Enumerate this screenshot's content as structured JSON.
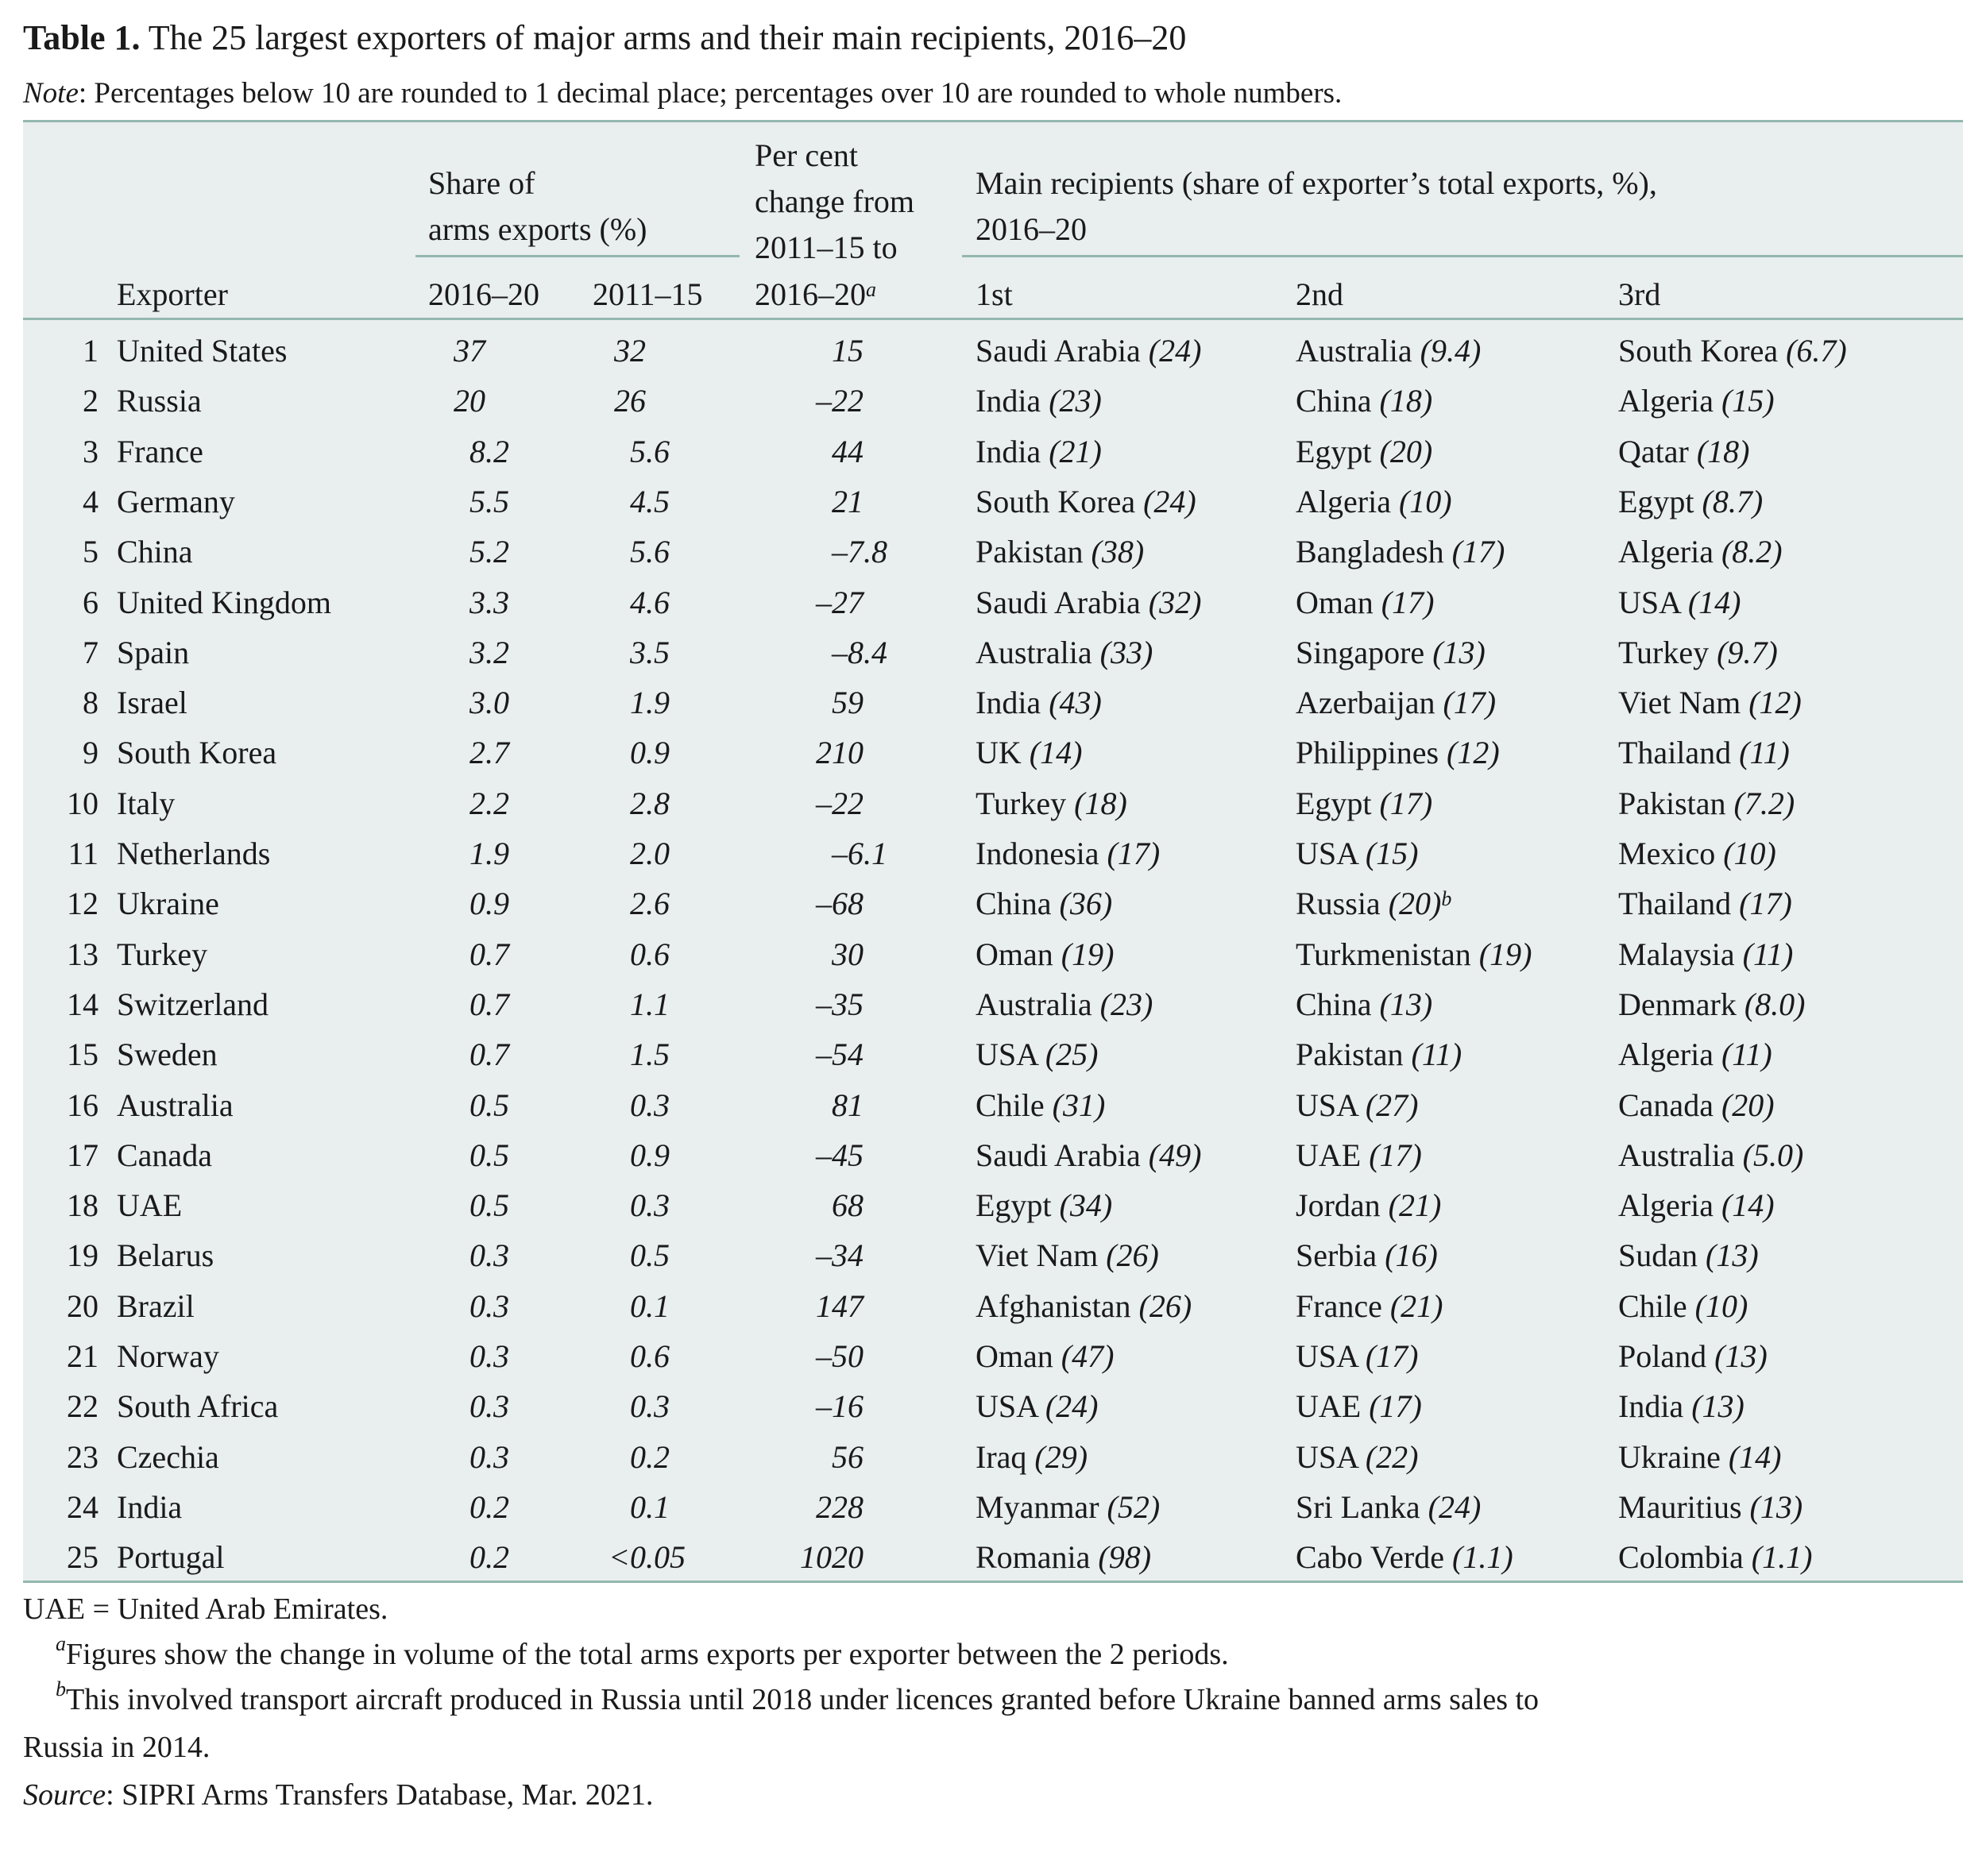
{
  "title": {
    "label": "Table 1.",
    "text": "The 25 largest exporters of major arms and their main recipients, 2016–20"
  },
  "note": {
    "label": "Note",
    "text": ": Percentages below 10 are rounded to 1 decimal place; percentages over 10 are rounded to whole numbers."
  },
  "header": {
    "share_group": [
      "Share of",
      "arms exports (%)"
    ],
    "change_group": [
      "Per cent",
      "change from",
      "2011–15 to",
      "2016–20"
    ],
    "change_footnote": "a",
    "recipients_group": [
      "Main recipients (share of exporter’s total exports, %),",
      "2016–20"
    ],
    "exporter": "Exporter",
    "share_2016_20": "2016–20",
    "share_2011_15": "2011–15",
    "first": "1st",
    "second": "2nd",
    "third": "3rd"
  },
  "colors": {
    "table_bg": "#e9eeee",
    "rule": "#93b8b0"
  },
  "rows": [
    {
      "rank": "1",
      "exporter": "United States",
      "s1620": "37",
      "s1115": "32",
      "change": "15",
      "r1": [
        "Saudi Arabia",
        "24"
      ],
      "r2": [
        "Australia",
        "9.4"
      ],
      "r3": [
        "South Korea",
        "6.7"
      ]
    },
    {
      "rank": "2",
      "exporter": "Russia",
      "s1620": "20",
      "s1115": "26",
      "change": "–22",
      "r1": [
        "India",
        "23"
      ],
      "r2": [
        "China",
        "18"
      ],
      "r3": [
        "Algeria",
        "15"
      ]
    },
    {
      "rank": "3",
      "exporter": "France",
      "s1620": "8.2",
      "s1115": "5.6",
      "change": "44",
      "r1": [
        "India",
        "21"
      ],
      "r2": [
        "Egypt",
        "20"
      ],
      "r3": [
        "Qatar",
        "18"
      ]
    },
    {
      "rank": "4",
      "exporter": "Germany",
      "s1620": "5.5",
      "s1115": "4.5",
      "change": "21",
      "r1": [
        "South Korea",
        "24"
      ],
      "r2": [
        "Algeria",
        "10"
      ],
      "r3": [
        "Egypt",
        "8.7"
      ]
    },
    {
      "rank": "5",
      "exporter": "China",
      "s1620": "5.2",
      "s1115": "5.6",
      "change": "–7.8",
      "r1": [
        "Pakistan",
        "38"
      ],
      "r2": [
        "Bangladesh",
        "17"
      ],
      "r3": [
        "Algeria",
        "8.2"
      ]
    },
    {
      "rank": "6",
      "exporter": "United Kingdom",
      "s1620": "3.3",
      "s1115": "4.6",
      "change": "–27",
      "r1": [
        "Saudi Arabia",
        "32"
      ],
      "r2": [
        "Oman",
        "17"
      ],
      "r3": [
        "USA",
        "14"
      ]
    },
    {
      "rank": "7",
      "exporter": "Spain",
      "s1620": "3.2",
      "s1115": "3.5",
      "change": "–8.4",
      "r1": [
        "Australia",
        "33"
      ],
      "r2": [
        "Singapore",
        "13"
      ],
      "r3": [
        "Turkey",
        "9.7"
      ]
    },
    {
      "rank": "8",
      "exporter": "Israel",
      "s1620": "3.0",
      "s1115": "1.9",
      "change": "59",
      "r1": [
        "India",
        "43"
      ],
      "r2": [
        "Azerbaijan",
        "17"
      ],
      "r3": [
        "Viet Nam",
        "12"
      ]
    },
    {
      "rank": "9",
      "exporter": "South Korea",
      "s1620": "2.7",
      "s1115": "0.9",
      "change": "210",
      "r1": [
        "UK",
        "14"
      ],
      "r2": [
        "Philippines",
        "12"
      ],
      "r3": [
        "Thailand",
        "11"
      ]
    },
    {
      "rank": "10",
      "exporter": "Italy",
      "s1620": "2.2",
      "s1115": "2.8",
      "change": "–22",
      "r1": [
        "Turkey",
        "18"
      ],
      "r2": [
        "Egypt",
        "17"
      ],
      "r3": [
        "Pakistan",
        "7.2"
      ]
    },
    {
      "rank": "11",
      "exporter": "Netherlands",
      "s1620": "1.9",
      "s1115": "2.0",
      "change": "–6.1",
      "r1": [
        "Indonesia",
        "17"
      ],
      "r2": [
        "USA",
        "15"
      ],
      "r3": [
        "Mexico",
        "10"
      ]
    },
    {
      "rank": "12",
      "exporter": "Ukraine",
      "s1620": "0.9",
      "s1115": "2.6",
      "change": "–68",
      "r1": [
        "China",
        "36"
      ],
      "r2": [
        "Russia",
        "20",
        "b"
      ],
      "r3": [
        "Thailand",
        "17"
      ]
    },
    {
      "rank": "13",
      "exporter": "Turkey",
      "s1620": "0.7",
      "s1115": "0.6",
      "change": "30",
      "r1": [
        "Oman",
        "19"
      ],
      "r2": [
        "Turkmenistan",
        "19"
      ],
      "r3": [
        "Malaysia",
        "11"
      ]
    },
    {
      "rank": "14",
      "exporter": "Switzerland",
      "s1620": "0.7",
      "s1115": "1.1",
      "change": "–35",
      "r1": [
        "Australia",
        "23"
      ],
      "r2": [
        "China",
        "13"
      ],
      "r3": [
        "Denmark",
        "8.0"
      ]
    },
    {
      "rank": "15",
      "exporter": "Sweden",
      "s1620": "0.7",
      "s1115": "1.5",
      "change": "–54",
      "r1": [
        "USA",
        "25"
      ],
      "r2": [
        "Pakistan",
        "11"
      ],
      "r3": [
        "Algeria",
        "11"
      ]
    },
    {
      "rank": "16",
      "exporter": "Australia",
      "s1620": "0.5",
      "s1115": "0.3",
      "change": "81",
      "r1": [
        "Chile",
        "31"
      ],
      "r2": [
        "USA",
        "27"
      ],
      "r3": [
        "Canada",
        "20"
      ]
    },
    {
      "rank": "17",
      "exporter": "Canada",
      "s1620": "0.5",
      "s1115": "0.9",
      "change": "–45",
      "r1": [
        "Saudi Arabia",
        "49"
      ],
      "r2": [
        "UAE",
        "17"
      ],
      "r3": [
        "Australia",
        "5.0"
      ]
    },
    {
      "rank": "18",
      "exporter": "UAE",
      "s1620": "0.5",
      "s1115": "0.3",
      "change": "68",
      "r1": [
        "Egypt",
        "34"
      ],
      "r2": [
        "Jordan",
        "21"
      ],
      "r3": [
        "Algeria",
        "14"
      ]
    },
    {
      "rank": "19",
      "exporter": "Belarus",
      "s1620": "0.3",
      "s1115": "0.5",
      "change": "–34",
      "r1": [
        "Viet Nam",
        "26"
      ],
      "r2": [
        "Serbia",
        "16"
      ],
      "r3": [
        "Sudan",
        "13"
      ]
    },
    {
      "rank": "20",
      "exporter": "Brazil",
      "s1620": "0.3",
      "s1115": "0.1",
      "change": "147",
      "r1": [
        "Afghanistan",
        "26"
      ],
      "r2": [
        "France",
        "21"
      ],
      "r3": [
        "Chile",
        "10"
      ]
    },
    {
      "rank": "21",
      "exporter": "Norway",
      "s1620": "0.3",
      "s1115": "0.6",
      "change": "–50",
      "r1": [
        "Oman",
        "47"
      ],
      "r2": [
        "USA",
        "17"
      ],
      "r3": [
        "Poland",
        "13"
      ]
    },
    {
      "rank": "22",
      "exporter": "South Africa",
      "s1620": "0.3",
      "s1115": "0.3",
      "change": "–16",
      "r1": [
        "USA",
        "24"
      ],
      "r2": [
        "UAE",
        "17"
      ],
      "r3": [
        "India",
        "13"
      ]
    },
    {
      "rank": "23",
      "exporter": "Czechia",
      "s1620": "0.3",
      "s1115": "0.2",
      "change": "56",
      "r1": [
        "Iraq",
        "29"
      ],
      "r2": [
        "USA",
        "22"
      ],
      "r3": [
        "Ukraine",
        "14"
      ]
    },
    {
      "rank": "24",
      "exporter": "India",
      "s1620": "0.2",
      "s1115": "0.1",
      "change": "228",
      "r1": [
        "Myanmar",
        "52"
      ],
      "r2": [
        "Sri Lanka",
        "24"
      ],
      "r3": [
        "Mauritius",
        "13"
      ]
    },
    {
      "rank": "25",
      "exporter": "Portugal",
      "s1620": "0.2",
      "s1115": "<0.05",
      "change": "1020",
      "r1": [
        "Romania",
        "98"
      ],
      "r2": [
        "Cabo Verde",
        "1.1"
      ],
      "r3": [
        "Colombia",
        "1.1"
      ]
    }
  ],
  "footer": {
    "abbrev": "UAE = United Arab Emirates.",
    "fn_a_mark": "a",
    "fn_a": "Figures show the change in volume of the total arms exports per exporter between the 2 periods.",
    "fn_b_mark": "b",
    "fn_b_line1": "This involved transport aircraft produced in Russia until 2018 under licences granted before Ukraine banned arms sales to",
    "fn_b_line2": "Russia in 2014.",
    "source_label": "Source",
    "source_text": ": SIPRI Arms Transfers Database, Mar. 2021."
  }
}
